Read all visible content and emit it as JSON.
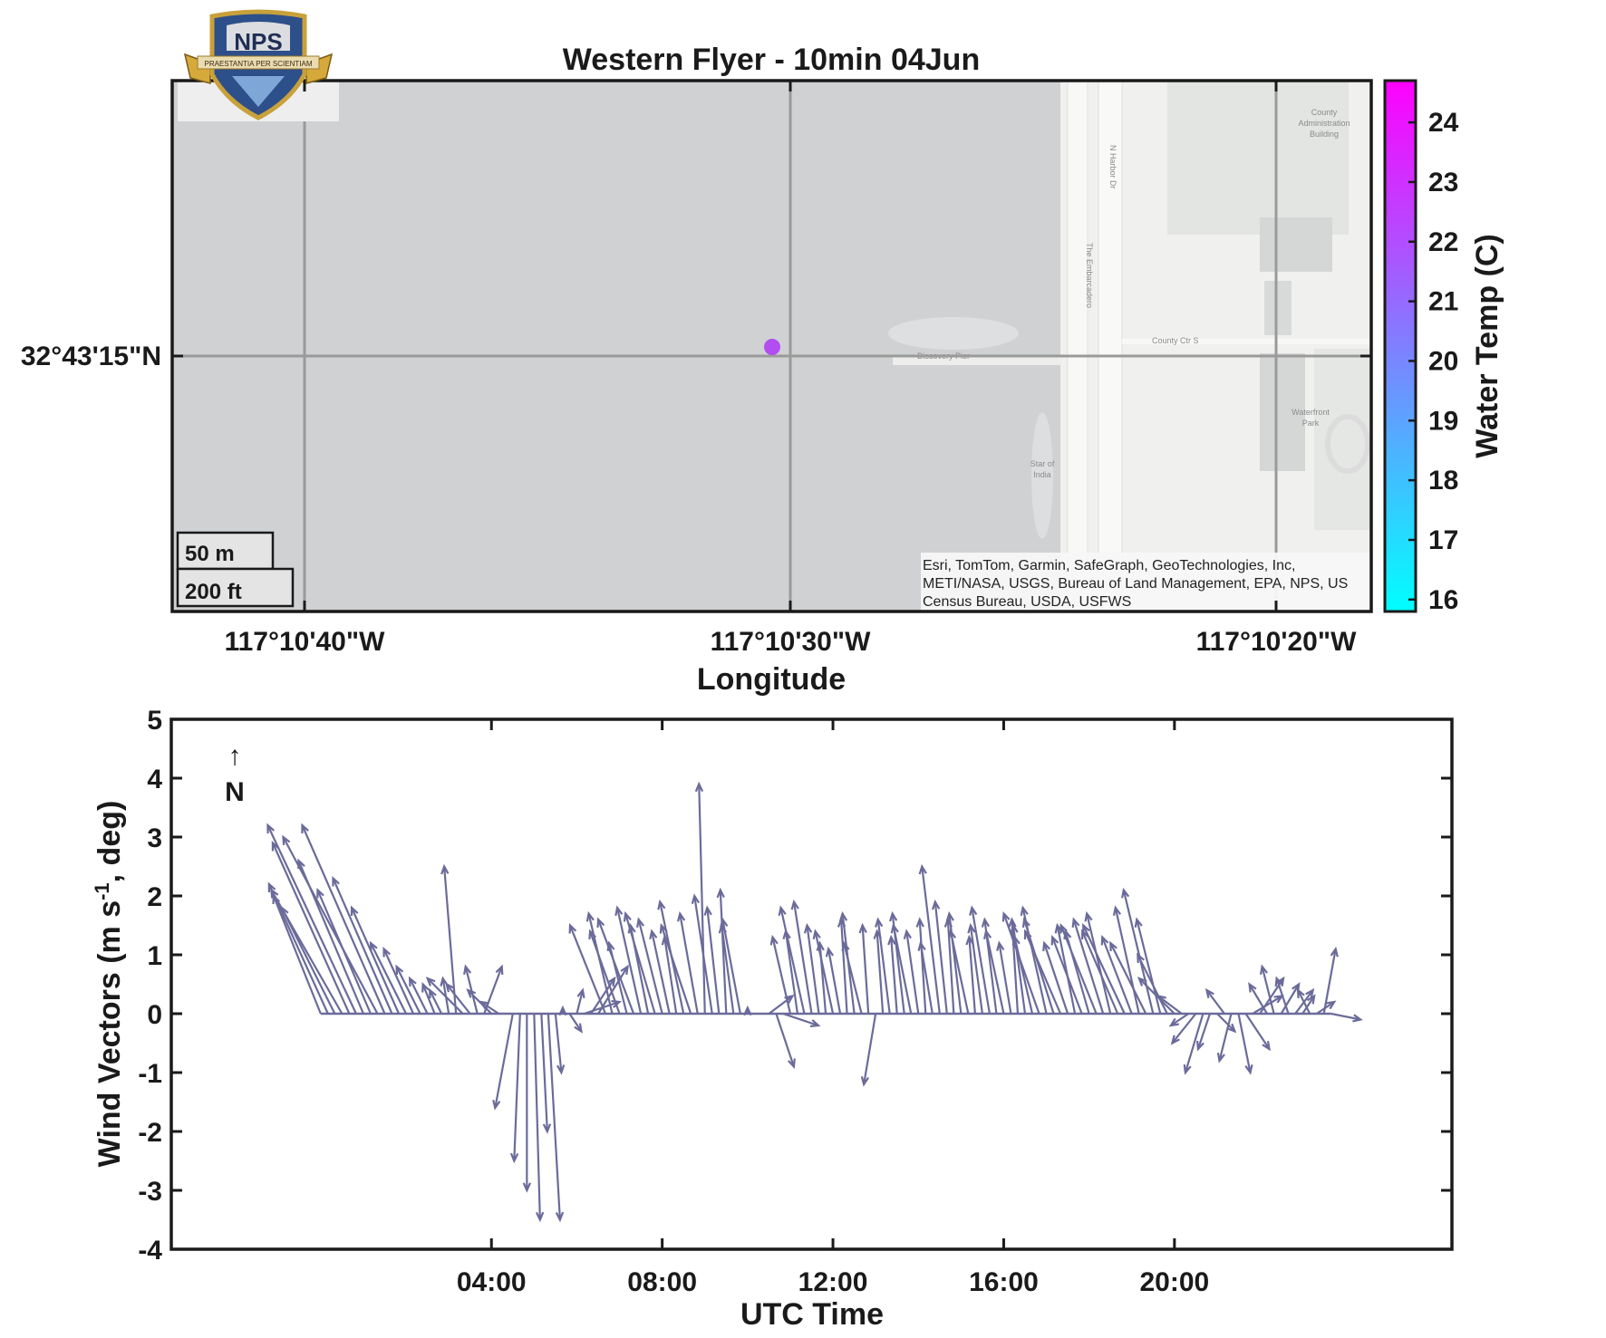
{
  "map": {
    "title": "Western Flyer - 10min 04Jun",
    "xlabel": "Longitude",
    "lon_ticks": [
      "117°10'40\"W",
      "117°10'30\"W",
      "117°10'20\"W"
    ],
    "lat_ticks": [
      "32°43'15\"N"
    ],
    "scale_bar": {
      "metric": "50 m",
      "imperial": "200 ft"
    },
    "attribution": [
      "Esri, TomTom, Garmin, SafeGraph, GeoTechnologies, Inc,",
      "METI/NASA, USGS, Bureau of Land Management, EPA, NPS, US",
      "Census Bureau, USDA, USFWS"
    ],
    "place_labels": {
      "harbor_dr": "N Harbor Dr",
      "embarcadero": "The Embarcadero",
      "county_ctr": "County Ctr S",
      "discovery_pier": "Discovery Pier",
      "star_of_india_1": "Star of",
      "star_of_india_2": "India",
      "county_admin_1": "County",
      "county_admin_2": "Administration",
      "county_admin_3": "Building",
      "waterfront_1": "Waterfront",
      "waterfront_2": "Park"
    },
    "logo": {
      "text": "NPS",
      "motto": "PRAESTANTIA PER SCIENTIAM"
    },
    "colorbar": {
      "label": "Water Temp (C)",
      "ticks": [
        "16",
        "17",
        "18",
        "19",
        "20",
        "21",
        "22",
        "23",
        "24"
      ],
      "range": [
        15.8,
        24.7
      ],
      "colors": [
        "#00ffff",
        "#ff00ff"
      ]
    },
    "marker": {
      "temperature": 21.7,
      "color": "#b24df2"
    }
  },
  "chart_data": {
    "type": "quiver",
    "title": "",
    "xlabel": "UTC Time",
    "ylabel": "Wind  Vectors  (m  s-1,  deg)",
    "x_ticks": [
      "04:00",
      "08:00",
      "12:00",
      "16:00",
      "20:00"
    ],
    "x_tick_hours": [
      4,
      8,
      12,
      16,
      20
    ],
    "xlim_hours": [
      -3.5,
      26.5
    ],
    "ylim": [
      -4,
      5
    ],
    "y_ticks": [
      -4,
      -3,
      -2,
      -1,
      0,
      1,
      2,
      3,
      4,
      5
    ],
    "north_label": "N",
    "north_arrow": "↑",
    "series_color": "#6b6b9a",
    "vectors": [
      {
        "t": 0.0,
        "u": -0.8,
        "v": 2.0
      },
      {
        "t": 0.17,
        "u": -1.0,
        "v": 2.2
      },
      {
        "t": 0.33,
        "u": -0.9,
        "v": 1.8
      },
      {
        "t": 0.5,
        "u": -1.2,
        "v": 2.1
      },
      {
        "t": 0.67,
        "u": -1.3,
        "v": 2.9
      },
      {
        "t": 0.83,
        "u": -1.5,
        "v": 3.2
      },
      {
        "t": 1.0,
        "u": -1.1,
        "v": 2.6
      },
      {
        "t": 1.17,
        "u": -0.9,
        "v": 2.1
      },
      {
        "t": 1.33,
        "u": -1.6,
        "v": 3.0
      },
      {
        "t": 1.5,
        "u": -1.4,
        "v": 3.2
      },
      {
        "t": 1.67,
        "u": -1.0,
        "v": 2.3
      },
      {
        "t": 1.83,
        "u": -0.8,
        "v": 1.8
      },
      {
        "t": 2.0,
        "u": -0.6,
        "v": 1.2
      },
      {
        "t": 2.17,
        "u": -0.5,
        "v": 1.1
      },
      {
        "t": 2.33,
        "u": -0.4,
        "v": 0.8
      },
      {
        "t": 2.5,
        "u": -0.3,
        "v": 0.6
      },
      {
        "t": 2.67,
        "u": -0.2,
        "v": 0.5
      },
      {
        "t": 2.83,
        "u": -0.2,
        "v": 0.4
      },
      {
        "t": 3.0,
        "u": -0.1,
        "v": 0.6
      },
      {
        "t": 3.17,
        "u": -0.2,
        "v": 2.5
      },
      {
        "t": 3.33,
        "u": -0.6,
        "v": 0.6
      },
      {
        "t": 3.5,
        "u": -0.4,
        "v": 0.5
      },
      {
        "t": 3.67,
        "u": -0.2,
        "v": 0.8
      },
      {
        "t": 3.83,
        "u": 0.3,
        "v": 0.8
      },
      {
        "t": 4.0,
        "u": -0.4,
        "v": 0.4
      },
      {
        "t": 4.17,
        "u": -0.3,
        "v": 0.2
      },
      {
        "t": 4.5,
        "u": -0.3,
        "v": -1.6
      },
      {
        "t": 4.67,
        "u": -0.1,
        "v": -2.5
      },
      {
        "t": 4.83,
        "u": 0.0,
        "v": -3.0
      },
      {
        "t": 5.0,
        "u": 0.1,
        "v": -3.5
      },
      {
        "t": 5.17,
        "u": 0.1,
        "v": -2.0
      },
      {
        "t": 5.33,
        "u": 0.2,
        "v": -3.5
      },
      {
        "t": 5.5,
        "u": 0.1,
        "v": -1.0
      },
      {
        "t": 5.67,
        "u": 0.0,
        "v": 0.1
      },
      {
        "t": 5.83,
        "u": 0.2,
        "v": -0.3
      },
      {
        "t": 6.0,
        "u": 0.1,
        "v": 0.4
      },
      {
        "t": 6.17,
        "u": 0.6,
        "v": 0.2
      },
      {
        "t": 6.33,
        "u": 0.4,
        "v": 0.6
      },
      {
        "t": 6.5,
        "u": 0.5,
        "v": 0.8
      },
      {
        "t": 6.67,
        "u": -0.6,
        "v": 1.5
      },
      {
        "t": 6.83,
        "u": -0.4,
        "v": 1.7
      },
      {
        "t": 7.0,
        "u": -0.5,
        "v": 1.4
      },
      {
        "t": 7.17,
        "u": -0.3,
        "v": 1.2
      },
      {
        "t": 7.33,
        "u": -0.6,
        "v": 1.6
      },
      {
        "t": 7.5,
        "u": -0.4,
        "v": 1.8
      },
      {
        "t": 7.67,
        "u": -0.3,
        "v": 1.5
      },
      {
        "t": 7.83,
        "u": -0.5,
        "v": 1.7
      },
      {
        "t": 8.0,
        "u": -0.4,
        "v": 1.6
      },
      {
        "t": 8.17,
        "u": -0.3,
        "v": 1.4
      },
      {
        "t": 8.33,
        "u": -0.2,
        "v": 1.3
      },
      {
        "t": 8.5,
        "u": -0.4,
        "v": 1.9
      },
      {
        "t": 8.67,
        "u": -0.5,
        "v": 1.5
      },
      {
        "t": 8.83,
        "u": -0.3,
        "v": 1.7
      },
      {
        "t": 9.0,
        "u": -0.1,
        "v": 3.9
      },
      {
        "t": 9.17,
        "u": -0.3,
        "v": 2.0
      },
      {
        "t": 9.33,
        "u": -0.2,
        "v": 1.8
      },
      {
        "t": 9.5,
        "u": -0.1,
        "v": 2.1
      },
      {
        "t": 9.67,
        "u": -0.2,
        "v": 1.5
      },
      {
        "t": 9.83,
        "u": -0.3,
        "v": 1.6
      },
      {
        "t": 10.0,
        "u": 0.0,
        "v": 0.1
      },
      {
        "t": 10.5,
        "u": 0.4,
        "v": 0.3
      },
      {
        "t": 10.67,
        "u": 0.3,
        "v": -0.9
      },
      {
        "t": 10.83,
        "u": 0.6,
        "v": -0.2
      },
      {
        "t": 11.0,
        "u": -0.3,
        "v": 1.3
      },
      {
        "t": 11.17,
        "u": -0.2,
        "v": 1.4
      },
      {
        "t": 11.33,
        "u": -0.4,
        "v": 1.8
      },
      {
        "t": 11.5,
        "u": -0.3,
        "v": 1.9
      },
      {
        "t": 11.67,
        "u": -0.2,
        "v": 1.5
      },
      {
        "t": 11.83,
        "u": -0.1,
        "v": 1.2
      },
      {
        "t": 12.0,
        "u": -0.3,
        "v": 1.4
      },
      {
        "t": 12.17,
        "u": -0.2,
        "v": 1.1
      },
      {
        "t": 12.33,
        "u": -0.1,
        "v": 1.6
      },
      {
        "t": 12.5,
        "u": -0.2,
        "v": 1.7
      },
      {
        "t": 12.67,
        "u": -0.3,
        "v": 1.2
      },
      {
        "t": 12.83,
        "u": -0.1,
        "v": 1.5
      },
      {
        "t": 13.0,
        "u": -0.2,
        "v": -1.2
      },
      {
        "t": 13.17,
        "u": -0.1,
        "v": 1.4
      },
      {
        "t": 13.33,
        "u": -0.2,
        "v": 1.6
      },
      {
        "t": 13.5,
        "u": -0.1,
        "v": 1.3
      },
      {
        "t": 13.67,
        "u": -0.2,
        "v": 1.7
      },
      {
        "t": 13.83,
        "u": -0.3,
        "v": 1.5
      },
      {
        "t": 14.0,
        "u": -0.2,
        "v": 1.4
      },
      {
        "t": 14.17,
        "u": -0.1,
        "v": 1.6
      },
      {
        "t": 14.33,
        "u": -0.2,
        "v": 1.2
      },
      {
        "t": 14.5,
        "u": -0.3,
        "v": 2.5
      },
      {
        "t": 14.67,
        "u": -0.2,
        "v": 1.9
      },
      {
        "t": 14.83,
        "u": -0.1,
        "v": 1.6
      },
      {
        "t": 15.0,
        "u": -0.2,
        "v": 1.7
      },
      {
        "t": 15.17,
        "u": -0.3,
        "v": 1.4
      },
      {
        "t": 15.33,
        "u": -0.1,
        "v": 1.3
      },
      {
        "t": 15.5,
        "u": -0.2,
        "v": 1.5
      },
      {
        "t": 15.67,
        "u": -0.3,
        "v": 1.8
      },
      {
        "t": 15.83,
        "u": -0.2,
        "v": 1.6
      },
      {
        "t": 16.0,
        "u": -0.3,
        "v": 1.4
      },
      {
        "t": 16.17,
        "u": -0.2,
        "v": 1.2
      },
      {
        "t": 16.33,
        "u": -0.1,
        "v": 1.6
      },
      {
        "t": 16.5,
        "u": -0.2,
        "v": 1.5
      },
      {
        "t": 16.67,
        "u": -0.3,
        "v": 1.3
      },
      {
        "t": 16.83,
        "u": -0.6,
        "v": 1.7
      },
      {
        "t": 17.0,
        "u": -0.4,
        "v": 1.8
      },
      {
        "t": 17.17,
        "u": -0.5,
        "v": 1.6
      },
      {
        "t": 17.33,
        "u": -0.6,
        "v": 1.4
      },
      {
        "t": 17.5,
        "u": -0.4,
        "v": 1.2
      },
      {
        "t": 17.67,
        "u": -0.3,
        "v": 1.5
      },
      {
        "t": 17.83,
        "u": -0.5,
        "v": 1.3
      },
      {
        "t": 18.0,
        "u": -0.4,
        "v": 1.4
      },
      {
        "t": 18.17,
        "u": -0.6,
        "v": 1.5
      },
      {
        "t": 18.33,
        "u": -0.5,
        "v": 1.6
      },
      {
        "t": 18.5,
        "u": -0.4,
        "v": 1.7
      },
      {
        "t": 18.67,
        "u": -0.6,
        "v": 1.4
      },
      {
        "t": 18.83,
        "u": -0.7,
        "v": 1.5
      },
      {
        "t": 19.0,
        "u": -0.5,
        "v": 1.3
      },
      {
        "t": 19.17,
        "u": -0.4,
        "v": 1.8
      },
      {
        "t": 19.33,
        "u": -0.6,
        "v": 1.2
      },
      {
        "t": 19.5,
        "u": -0.5,
        "v": 2.1
      },
      {
        "t": 19.67,
        "u": -0.4,
        "v": 1.6
      },
      {
        "t": 19.83,
        "u": -0.5,
        "v": 1.0
      },
      {
        "t": 20.0,
        "u": -0.6,
        "v": 0.6
      },
      {
        "t": 20.17,
        "u": -0.4,
        "v": 0.3
      },
      {
        "t": 20.33,
        "u": -0.3,
        "v": -0.2
      },
      {
        "t": 20.5,
        "u": -0.4,
        "v": -0.5
      },
      {
        "t": 20.67,
        "u": -0.3,
        "v": -1.0
      },
      {
        "t": 20.83,
        "u": -0.2,
        "v": -0.6
      },
      {
        "t": 21.0,
        "u": 0.3,
        "v": -0.3
      },
      {
        "t": 21.17,
        "u": -0.3,
        "v": 0.4
      },
      {
        "t": 21.33,
        "u": -0.2,
        "v": -0.8
      },
      {
        "t": 21.5,
        "u": 0.2,
        "v": -1.0
      },
      {
        "t": 21.67,
        "u": 0.4,
        "v": -0.6
      },
      {
        "t": 21.83,
        "u": 0.5,
        "v": 0.3
      },
      {
        "t": 22.0,
        "u": 0.4,
        "v": 0.6
      },
      {
        "t": 22.17,
        "u": -0.3,
        "v": 0.5
      },
      {
        "t": 22.33,
        "u": -0.2,
        "v": 0.8
      },
      {
        "t": 22.5,
        "u": 0.3,
        "v": 0.5
      },
      {
        "t": 22.67,
        "u": -0.2,
        "v": 0.6
      },
      {
        "t": 22.83,
        "u": 0.3,
        "v": 0.4
      },
      {
        "t": 23.0,
        "u": 0.2,
        "v": 0.3
      },
      {
        "t": 23.17,
        "u": -0.2,
        "v": 0.4
      },
      {
        "t": 23.33,
        "u": 0.3,
        "v": 0.2
      },
      {
        "t": 23.5,
        "u": 0.2,
        "v": 1.1
      },
      {
        "t": 23.67,
        "u": 0.5,
        "v": -0.1
      }
    ]
  }
}
